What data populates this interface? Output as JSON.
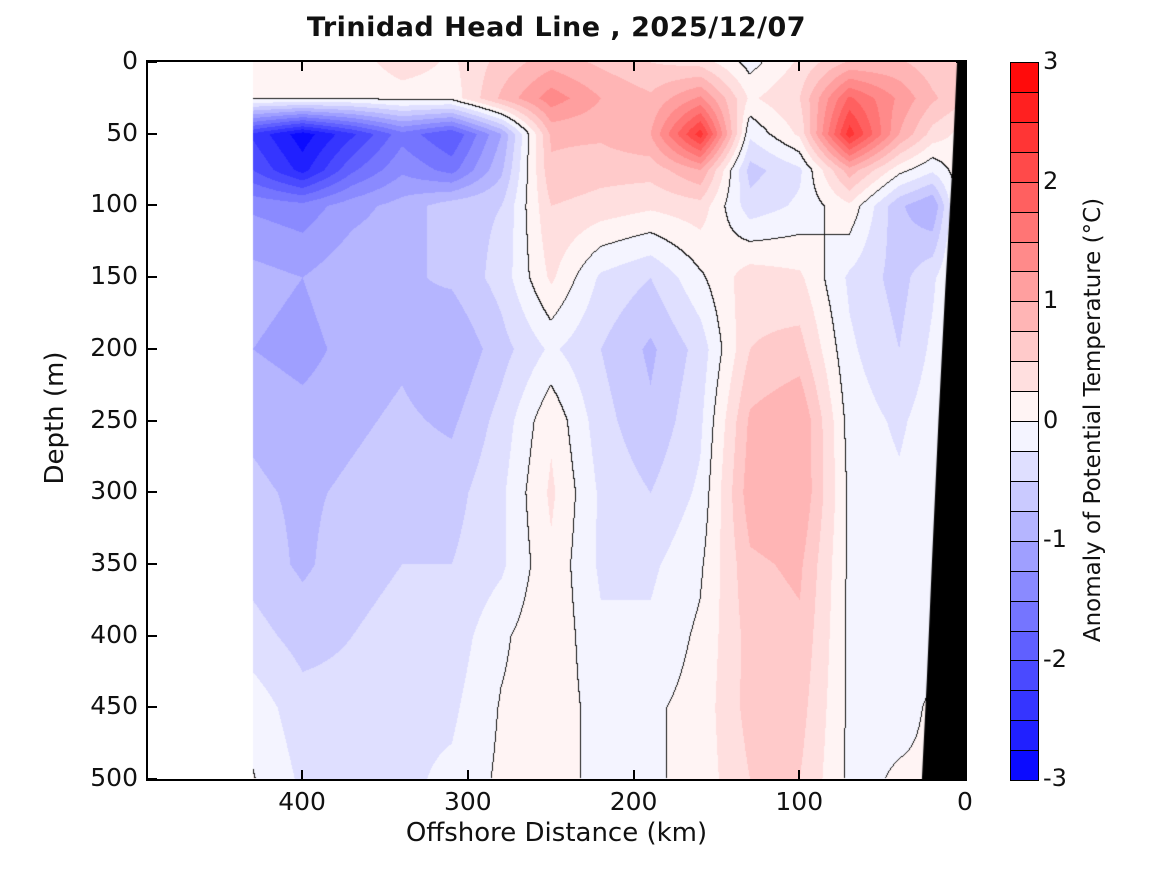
{
  "title": "Trinidad Head Line , 2025/12/07",
  "x_axis": {
    "label": "Offshore Distance (km)",
    "ticks": [
      400,
      300,
      200,
      100,
      0
    ],
    "range_km": [
      493,
      0
    ],
    "reversed": true
  },
  "y_axis": {
    "label": "Depth (m)",
    "ticks": [
      0,
      50,
      100,
      150,
      200,
      250,
      300,
      350,
      400,
      450,
      500
    ],
    "range_m": [
      0,
      500
    ]
  },
  "colorbar": {
    "label": "Anomaly of Potential Temperature (°C)",
    "ticks": [
      3,
      2,
      1,
      0,
      -1,
      -2,
      -3
    ],
    "min": -3,
    "max": 3,
    "step": 0.25,
    "positive_color": "#ff0000",
    "zero_color": "#ffffff",
    "negative_color": "#0000ff"
  },
  "chart_data": {
    "type": "heatmap",
    "title": "Trinidad Head Line , 2025/12/07",
    "xlabel": "Offshore Distance (km)",
    "ylabel": "Depth (m)",
    "legend": "Anomaly of Potential Temperature (°C)",
    "contour_level": 0,
    "data_extent_km": [
      430,
      0
    ],
    "x_km": [
      430,
      400,
      370,
      340,
      310,
      280,
      250,
      220,
      190,
      160,
      130,
      100,
      70,
      40,
      20,
      5
    ],
    "depth_m": [
      0,
      25,
      50,
      75,
      100,
      150,
      200,
      250,
      300,
      350,
      400,
      450,
      500
    ],
    "anomaly_degC": [
      [
        0.05,
        0.05,
        0.1,
        0.4,
        0.2,
        0.6,
        0.9,
        0.7,
        0.5,
        0.4,
        -0.1,
        0.3,
        0.8,
        0.8,
        0.6,
        0.5
      ],
      [
        0.05,
        0.05,
        0.02,
        0.1,
        0.1,
        0.8,
        1.4,
        1.0,
        0.8,
        1.3,
        0.2,
        0.5,
        1.8,
        1.2,
        0.8,
        0.6
      ],
      [
        -2.3,
        -2.9,
        -2.3,
        -1.6,
        -2.0,
        -1.0,
        0.8,
        0.8,
        1.0,
        2.4,
        -0.2,
        0.3,
        2.4,
        1.0,
        0.4,
        0.2
      ],
      [
        -2.0,
        -2.6,
        -1.8,
        -1.3,
        -1.6,
        -0.8,
        0.7,
        0.6,
        0.6,
        1.0,
        -0.6,
        -0.3,
        0.9,
        0.1,
        -0.2,
        0.1
      ],
      [
        -1.3,
        -1.4,
        -1.1,
        -0.9,
        -0.6,
        -0.5,
        0.5,
        0.4,
        0.3,
        0.4,
        -0.4,
        -0.2,
        0.2,
        -0.7,
        -1.0,
        0.05
      ],
      [
        -0.9,
        -1.0,
        -0.8,
        -0.8,
        -0.7,
        -0.4,
        0.3,
        -0.3,
        -0.5,
        -0.05,
        0.4,
        0.3,
        -0.3,
        -0.6,
        -0.3,
        0.05
      ],
      [
        -1.0,
        -1.1,
        -0.9,
        -0.8,
        -1.0,
        -0.6,
        -0.2,
        -0.5,
        -0.8,
        -0.4,
        0.5,
        0.6,
        -0.2,
        -0.5,
        -0.2,
        0.05
      ],
      [
        -0.8,
        -0.9,
        -0.8,
        -0.7,
        -0.8,
        -0.4,
        0.2,
        -0.4,
        -0.7,
        -0.3,
        0.8,
        1.0,
        -0.1,
        -0.3,
        -0.1,
        0.05
      ],
      [
        -0.7,
        -0.8,
        -0.7,
        -0.6,
        -0.6,
        -0.3,
        0.3,
        -0.3,
        -0.5,
        -0.2,
        0.9,
        1.0,
        -0.05,
        -0.2,
        -0.05,
        0.05
      ],
      [
        -0.6,
        -0.8,
        -0.6,
        -0.5,
        -0.5,
        -0.3,
        0.2,
        -0.3,
        -0.3,
        -0.05,
        0.7,
        0.8,
        -0.05,
        -0.05,
        -0.05,
        0.05
      ],
      [
        -0.4,
        -0.6,
        -0.5,
        -0.4,
        -0.4,
        -0.05,
        0.2,
        -0.2,
        -0.2,
        0.05,
        0.6,
        0.7,
        -0.05,
        -0.05,
        -0.05,
        0.05
      ],
      [
        -0.1,
        -0.4,
        -0.4,
        -0.3,
        -0.3,
        0.02,
        0.15,
        -0.1,
        -0.05,
        0.1,
        0.6,
        0.6,
        -0.05,
        -0.05,
        0.02,
        0.05
      ],
      [
        0.02,
        -0.3,
        -0.3,
        -0.3,
        -0.2,
        0.05,
        0.15,
        -0.1,
        -0.05,
        0.1,
        0.5,
        0.5,
        -0.05,
        0.02,
        0.02,
        0.05
      ]
    ],
    "coast_mask_km_depth": [
      [
        4.8,
        0
      ],
      [
        8,
        80
      ],
      [
        12,
        160
      ],
      [
        16,
        250
      ],
      [
        20,
        350
      ],
      [
        23,
        430
      ],
      [
        26,
        500
      ]
    ],
    "layout": {
      "grid": false,
      "colorbar_position": "right",
      "coast_color": "#000000"
    }
  }
}
